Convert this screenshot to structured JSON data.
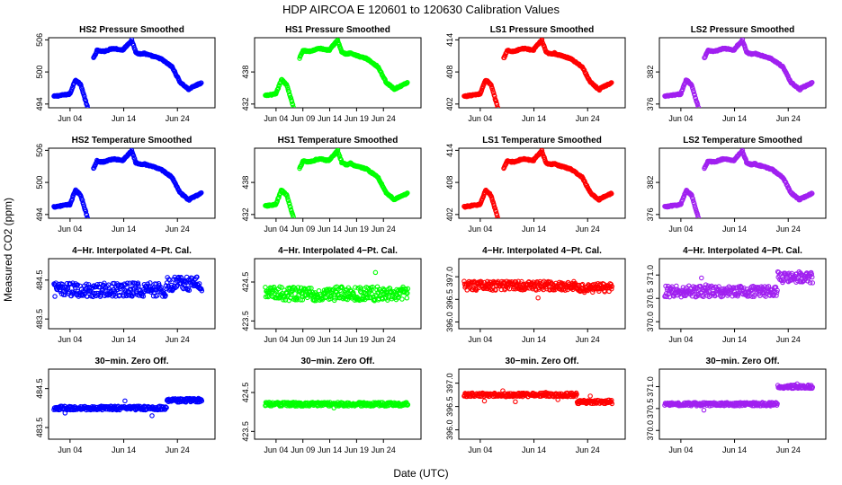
{
  "figure": {
    "title": "HDP    AIRCOA E    120601 to 120630    Calibration Values",
    "xlabel": "Date (UTC)",
    "ylabel": "Measured CO2 (ppm)"
  },
  "colors": {
    "HS2": "#0000ff",
    "HS1": "#00ff00",
    "LS1": "#ff0000",
    "LS2": "#a020f0"
  },
  "chart_data": [
    {
      "type": "scatter",
      "row": 0,
      "col": 0,
      "title": "HS2 Pressure Smoothed",
      "series": "HS2",
      "profile": "smooth",
      "base": 494,
      "span": 12,
      "ylim": [
        493.3,
        506.4
      ],
      "yticks": [
        494,
        500,
        506
      ],
      "x_start": 1,
      "xticks": [
        4,
        14,
        24
      ],
      "xtick_labels": [
        "Jun 04",
        "Jun 14",
        "Jun 24"
      ]
    },
    {
      "type": "scatter",
      "row": 0,
      "col": 1,
      "title": "HS1 Pressure Smoothed",
      "series": "HS1",
      "profile": "smooth",
      "base": 432,
      "span": 12,
      "ylim": [
        431.3,
        444.4
      ],
      "yticks": [
        432,
        438
      ],
      "x_start": 2,
      "xticks": [
        4,
        9,
        14,
        19,
        24
      ],
      "xtick_labels": [
        "Jun 04",
        "Jun 09",
        "Jun 14",
        "Jun 19",
        "Jun 24"
      ]
    },
    {
      "type": "scatter",
      "row": 0,
      "col": 2,
      "title": "LS1 Pressure Smoothed",
      "series": "LS1",
      "profile": "smooth",
      "base": 402,
      "span": 12,
      "ylim": [
        401.3,
        414.4
      ],
      "yticks": [
        402,
        408,
        414
      ],
      "x_start": 1,
      "xticks": [
        4,
        14,
        24
      ],
      "xtick_labels": [
        "Jun 04",
        "Jun 14",
        "Jun 24"
      ]
    },
    {
      "type": "scatter",
      "row": 0,
      "col": 3,
      "title": "LS2 Pressure Smoothed",
      "series": "LS2",
      "profile": "smooth",
      "base": 376,
      "span": 12,
      "ylim": [
        375.3,
        388.4
      ],
      "yticks": [
        376,
        382
      ],
      "x_start": 1,
      "xticks": [
        4,
        14,
        24
      ],
      "xtick_labels": [
        "Jun 04",
        "Jun 14",
        "Jun 24"
      ]
    },
    {
      "type": "scatter",
      "row": 1,
      "col": 0,
      "title": "HS2 Temperature Smoothed",
      "series": "HS2",
      "profile": "smooth",
      "base": 494,
      "span": 12,
      "ylim": [
        493.3,
        506.4
      ],
      "yticks": [
        494,
        500,
        506
      ],
      "x_start": 1,
      "xticks": [
        4,
        14,
        24
      ],
      "xtick_labels": [
        "Jun 04",
        "Jun 14",
        "Jun 24"
      ]
    },
    {
      "type": "scatter",
      "row": 1,
      "col": 1,
      "title": "HS1 Temperature Smoothed",
      "series": "HS1",
      "profile": "smooth",
      "base": 432,
      "span": 12,
      "ylim": [
        431.3,
        444.4
      ],
      "yticks": [
        432,
        438
      ],
      "x_start": 2,
      "xticks": [
        4,
        9,
        14,
        19,
        24
      ],
      "xtick_labels": [
        "Jun 04",
        "Jun 09",
        "Jun 14",
        "Jun 19",
        "Jun 24"
      ]
    },
    {
      "type": "scatter",
      "row": 1,
      "col": 2,
      "title": "LS1 Temperature Smoothed",
      "series": "LS1",
      "profile": "smooth",
      "base": 402,
      "span": 12,
      "ylim": [
        401.3,
        414.4
      ],
      "yticks": [
        402,
        408,
        414
      ],
      "x_start": 1,
      "xticks": [
        4,
        14,
        24
      ],
      "xtick_labels": [
        "Jun 04",
        "Jun 14",
        "Jun 24"
      ]
    },
    {
      "type": "scatter",
      "row": 1,
      "col": 3,
      "title": "LS2 Temperature Smoothed",
      "series": "LS2",
      "profile": "smooth",
      "base": 376,
      "span": 12,
      "ylim": [
        375.3,
        388.4
      ],
      "yticks": [
        376,
        382
      ],
      "x_start": 1,
      "xticks": [
        4,
        14,
        24
      ],
      "xtick_labels": [
        "Jun 04",
        "Jun 14",
        "Jun 24"
      ]
    },
    {
      "type": "scatter",
      "row": 2,
      "col": 0,
      "title": "4−Hr. Interpolated 4−Pt. Cal.",
      "series": "HS2",
      "profile": "noisy",
      "center": 484.25,
      "amp": 0.18,
      "shift": 0.15,
      "shift_at": 22,
      "ylim": [
        483.25,
        485.05
      ],
      "yticks": [
        483.5,
        484.5
      ],
      "x_start": 1,
      "xticks": [
        4,
        14,
        24
      ],
      "xtick_labels": [
        "Jun 04",
        "Jun 14",
        "Jun 24"
      ]
    },
    {
      "type": "scatter",
      "row": 2,
      "col": 1,
      "title": "4−Hr. Interpolated 4−Pt. Cal.",
      "series": "HS1",
      "profile": "noisy",
      "center": 424.2,
      "amp": 0.18,
      "shift": 0,
      "shift_at": 22,
      "ylim": [
        423.3,
        425.1
      ],
      "yticks": [
        423.5,
        424.5
      ],
      "x_start": 2,
      "xticks": [
        4,
        9,
        14,
        19,
        24
      ],
      "xtick_labels": [
        "Jun 04",
        "Jun 09",
        "Jun 14",
        "Jun 19",
        "Jun 24"
      ]
    },
    {
      "type": "scatter",
      "row": 2,
      "col": 2,
      "title": "4−Hr. Interpolated 4−Pt. Cal.",
      "series": "LS1",
      "profile": "noisy",
      "center": 396.8,
      "amp": 0.1,
      "shift": -0.05,
      "shift_at": 22,
      "ylim": [
        395.85,
        397.4
      ],
      "yticks": [
        396.0,
        396.5,
        397.0
      ],
      "x_start": 1,
      "xticks": [
        4,
        14,
        24
      ],
      "xtick_labels": [
        "Jun 04",
        "Jun 14",
        "Jun 24"
      ]
    },
    {
      "type": "scatter",
      "row": 2,
      "col": 3,
      "title": "4−Hr. Interpolated 4−Pt. Cal.",
      "series": "LS2",
      "profile": "noisy",
      "center": 370.65,
      "amp": 0.12,
      "shift": 0.3,
      "shift_at": 22,
      "ylim": [
        369.85,
        371.35
      ],
      "yticks": [
        370.0,
        370.5,
        371.0
      ],
      "x_start": 1,
      "xticks": [
        4,
        14,
        24
      ],
      "xtick_labels": [
        "Jun 04",
        "Jun 14",
        "Jun 24"
      ]
    },
    {
      "type": "scatter",
      "row": 3,
      "col": 0,
      "title": "30−min. Zero Off.",
      "series": "HS2",
      "profile": "flat",
      "center": 484.0,
      "amp": 0.05,
      "shift": 0.2,
      "shift_at": 22,
      "ylim": [
        483.2,
        485.0
      ],
      "yticks": [
        483.5,
        484.5
      ],
      "x_start": 1,
      "xticks": [
        4,
        14,
        24
      ],
      "xtick_labels": [
        "Jun 04",
        "Jun 14",
        "Jun 24"
      ]
    },
    {
      "type": "scatter",
      "row": 3,
      "col": 1,
      "title": "30−min. Zero Off.",
      "series": "HS1",
      "profile": "flat",
      "center": 424.2,
      "amp": 0.05,
      "shift": 0,
      "shift_at": 22,
      "ylim": [
        423.3,
        425.1
      ],
      "yticks": [
        423.5,
        424.5
      ],
      "x_start": 2,
      "xticks": [
        4,
        9,
        14,
        19,
        24
      ],
      "xtick_labels": [
        "Jun 04",
        "Jun 09",
        "Jun 14",
        "Jun 19",
        "Jun 24"
      ]
    },
    {
      "type": "scatter",
      "row": 3,
      "col": 2,
      "title": "30−min. Zero Off.",
      "series": "LS1",
      "profile": "flat",
      "center": 396.75,
      "amp": 0.04,
      "shift": -0.15,
      "shift_at": 22,
      "ylim": [
        395.8,
        397.3
      ],
      "yticks": [
        396.0,
        396.5,
        397.0
      ],
      "x_start": 1,
      "xticks": [
        4,
        14,
        24
      ],
      "xtick_labels": [
        "Jun 04",
        "Jun 14",
        "Jun 24"
      ]
    },
    {
      "type": "scatter",
      "row": 3,
      "col": 3,
      "title": "30−min. Zero Off.",
      "series": "LS2",
      "profile": "flat",
      "center": 370.6,
      "amp": 0.04,
      "shift": 0.4,
      "shift_at": 22,
      "ylim": [
        369.8,
        371.4
      ],
      "yticks": [
        370.0,
        370.5,
        371.0
      ],
      "x_start": 1,
      "xticks": [
        4,
        14,
        24
      ],
      "xtick_labels": [
        "Jun 04",
        "Jun 14",
        "Jun 24"
      ]
    }
  ]
}
